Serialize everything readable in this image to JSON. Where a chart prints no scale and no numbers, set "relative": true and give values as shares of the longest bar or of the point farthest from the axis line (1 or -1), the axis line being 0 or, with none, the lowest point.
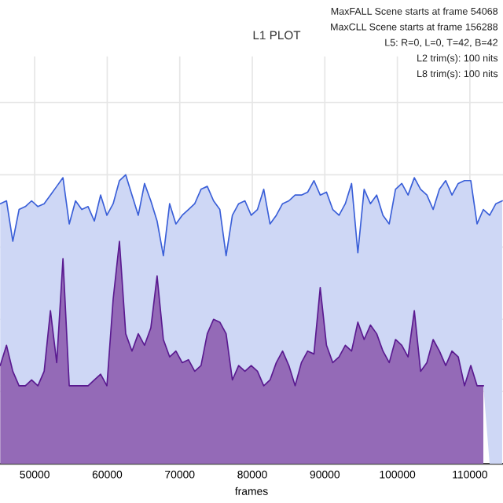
{
  "chart_data": {
    "type": "area",
    "title": "L1 PLOT",
    "xlabel": "frames",
    "annotations": [
      "MaxFALL Scene starts at frame 54068",
      "MaxCLL Scene starts at frame 156288",
      "L5: R=0, L=0, T=42, B=42",
      "L2 trim(s): 100 nits",
      "L8 trim(s): 100 nits"
    ],
    "relative": true,
    "x": [
      45250,
      46115,
      46980,
      47845,
      48710,
      49575,
      50440,
      51305,
      52170,
      53035,
      53900,
      54765,
      55630,
      56495,
      57360,
      58225,
      59090,
      59955,
      60820,
      61685,
      62550,
      63415,
      64280,
      65145,
      66010,
      66875,
      67740,
      68605,
      69470,
      70335,
      71200,
      72065,
      72930,
      73795,
      74660,
      75525,
      76390,
      77255,
      78120,
      78985,
      79850,
      80715,
      81580,
      82445,
      83310,
      84175,
      85040,
      85905,
      86770,
      87635,
      88500,
      89365,
      90230,
      91095,
      91960,
      92825,
      93690,
      94555,
      95420,
      96285,
      97150,
      98015,
      98880,
      99745,
      100610,
      101475,
      102340,
      103205,
      104070,
      104935,
      105800,
      106665,
      107530,
      108395,
      109260,
      110125,
      110990,
      111855,
      112720,
      113585,
      114450
    ],
    "series": [
      {
        "color": "#5a1a90",
        "values": [
          0.34,
          0.41,
          0.32,
          0.27,
          0.27,
          0.29,
          0.27,
          0.32,
          0.53,
          0.35,
          0.71,
          0.27,
          0.27,
          0.27,
          0.27,
          0.29,
          0.31,
          0.27,
          0.57,
          0.77,
          0.45,
          0.39,
          0.45,
          0.41,
          0.47,
          0.65,
          0.43,
          0.37,
          0.39,
          0.35,
          0.36,
          0.32,
          0.34,
          0.45,
          0.5,
          0.49,
          0.45,
          0.29,
          0.34,
          0.32,
          0.34,
          0.32,
          0.27,
          0.29,
          0.35,
          0.39,
          0.34,
          0.27,
          0.35,
          0.39,
          0.38,
          0.61,
          0.41,
          0.35,
          0.37,
          0.41,
          0.39,
          0.49,
          0.43,
          0.48,
          0.45,
          0.39,
          0.35,
          0.43,
          0.41,
          0.37,
          0.53,
          0.32,
          0.35,
          0.43,
          0.39,
          0.34,
          0.39,
          0.37,
          0.27,
          0.34,
          0.27,
          0.27,
          null,
          null,
          null
        ]
      },
      {
        "color": "#3a5fd8",
        "values": [
          0.9,
          0.91,
          0.77,
          0.88,
          0.89,
          0.91,
          0.89,
          0.9,
          0.93,
          0.96,
          0.99,
          0.83,
          0.91,
          0.88,
          0.89,
          0.84,
          0.93,
          0.86,
          0.9,
          0.98,
          1.0,
          0.93,
          0.86,
          0.97,
          0.91,
          0.84,
          0.72,
          0.9,
          0.83,
          0.86,
          0.88,
          0.9,
          0.95,
          0.96,
          0.91,
          0.88,
          0.72,
          0.86,
          0.9,
          0.91,
          0.86,
          0.88,
          0.95,
          0.83,
          0.86,
          0.9,
          0.91,
          0.93,
          0.93,
          0.94,
          0.98,
          0.93,
          0.94,
          0.88,
          0.86,
          0.9,
          0.97,
          0.73,
          0.95,
          0.9,
          0.93,
          0.86,
          0.83,
          0.95,
          0.97,
          0.93,
          0.99,
          0.95,
          0.93,
          0.88,
          0.95,
          0.98,
          0.93,
          0.97,
          0.98,
          0.98,
          0.83,
          0.88,
          0.86,
          0.9,
          0.91
        ]
      }
    ],
    "xlim": [
      45217,
      114565
    ],
    "xticks": [
      50000,
      60000,
      70000,
      80000,
      90000,
      100000,
      110000
    ],
    "grid": true,
    "legend": false,
    "tick_labels": "x"
  }
}
